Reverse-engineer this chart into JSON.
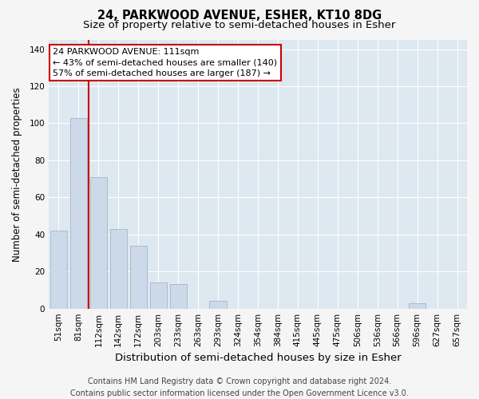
{
  "title": "24, PARKWOOD AVENUE, ESHER, KT10 8DG",
  "subtitle": "Size of property relative to semi-detached houses in Esher",
  "xlabel": "Distribution of semi-detached houses by size in Esher",
  "ylabel": "Number of semi-detached properties",
  "bins": [
    "51sqm",
    "81sqm",
    "112sqm",
    "142sqm",
    "172sqm",
    "203sqm",
    "233sqm",
    "263sqm",
    "293sqm",
    "324sqm",
    "354sqm",
    "384sqm",
    "415sqm",
    "445sqm",
    "475sqm",
    "506sqm",
    "536sqm",
    "566sqm",
    "596sqm",
    "627sqm",
    "657sqm"
  ],
  "counts": [
    42,
    103,
    71,
    43,
    34,
    14,
    13,
    0,
    4,
    0,
    0,
    0,
    0,
    0,
    0,
    0,
    0,
    0,
    3,
    0,
    0
  ],
  "bar_color": "#ccd9e8",
  "bar_edge_color": "#aabbcc",
  "highlight_bin_index": 1,
  "highlight_line_color": "#cc0000",
  "annotation_text": "24 PARKWOOD AVENUE: 111sqm\n← 43% of semi-detached houses are smaller (140)\n57% of semi-detached houses are larger (187) →",
  "annotation_box_facecolor": "#ffffff",
  "annotation_box_edgecolor": "#cc0000",
  "ylim": [
    0,
    145
  ],
  "yticks": [
    0,
    20,
    40,
    60,
    80,
    100,
    120,
    140
  ],
  "figure_bg_color": "#f5f5f5",
  "plot_bg_color": "#dde8f0",
  "grid_color": "#ffffff",
  "footer_text": "Contains HM Land Registry data © Crown copyright and database right 2024.\nContains public sector information licensed under the Open Government Licence v3.0.",
  "title_fontsize": 10.5,
  "subtitle_fontsize": 9.5,
  "xlabel_fontsize": 9.5,
  "ylabel_fontsize": 8.5,
  "tick_fontsize": 7.5,
  "annotation_fontsize": 8,
  "footer_fontsize": 7
}
